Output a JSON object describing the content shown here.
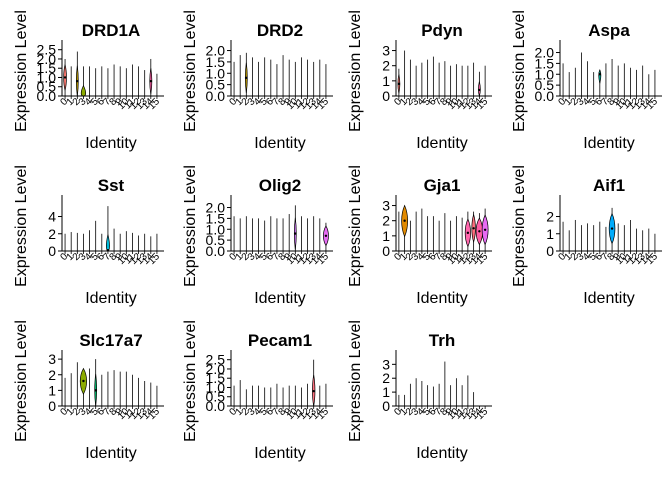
{
  "figure": {
    "type": "violin",
    "identities": [
      "0",
      "1",
      "2",
      "3",
      "4",
      "5",
      "6",
      "7",
      "8",
      "9",
      "10",
      "11",
      "12",
      "13",
      "14",
      "15"
    ],
    "colors": [
      "#F8766D",
      "#E18A00",
      "#BE9C00",
      "#8CAB00",
      "#24B700",
      "#00BE70",
      "#00C1AB",
      "#00BBDA",
      "#00ACFC",
      "#8B93FF",
      "#D575FE",
      "#F962DD",
      "#FF65AC",
      "#FF6F7E",
      "#FF5EA6",
      "#E76BF3"
    ]
  },
  "chart_data": [
    {
      "type": "violin",
      "title": "DRD1A",
      "xlabel": "Identity",
      "ylabel": "Expression Level",
      "ylim": [
        0,
        2.7
      ],
      "yticks": [
        "0.0",
        "0.5",
        "1.0",
        "1.5",
        "2.0",
        "2.5"
      ],
      "max": [
        2.0,
        1.6,
        2.4,
        1.6,
        1.6,
        1.5,
        1.6,
        1.5,
        1.7,
        1.6,
        1.5,
        1.7,
        1.6,
        1.4,
        2.0,
        1.2
      ],
      "median": [
        1.0,
        0,
        0.8,
        0,
        0,
        0,
        0,
        0,
        0,
        0,
        0,
        0,
        0,
        0,
        0.8,
        0
      ],
      "width": [
        0.22,
        0,
        0.05,
        0.35,
        0,
        0,
        0,
        0,
        0,
        0,
        0,
        0,
        0,
        0,
        0.15,
        0
      ]
    },
    {
      "type": "violin",
      "title": "DRD2",
      "xlabel": "Identity",
      "ylabel": "Expression Level",
      "ylim": [
        0,
        2.2
      ],
      "yticks": [
        "0.0",
        "0.5",
        "1.0",
        "1.5",
        "2.0"
      ],
      "max": [
        1.5,
        1.8,
        1.9,
        1.7,
        1.5,
        1.7,
        1.6,
        1.4,
        1.8,
        1.6,
        1.5,
        1.7,
        1.6,
        1.5,
        1.6,
        1.4
      ],
      "median": [
        0,
        0,
        0.8,
        0,
        0,
        0,
        0,
        0,
        0,
        0,
        0,
        0,
        0,
        0,
        0,
        0
      ],
      "width": [
        0,
        0,
        0.1,
        0,
        0,
        0,
        0,
        0,
        0,
        0,
        0,
        0,
        0,
        0,
        0,
        0
      ]
    },
    {
      "type": "violin",
      "title": "Pdyn",
      "xlabel": "Identity",
      "ylabel": "Expression Level",
      "ylim": [
        0,
        3.3
      ],
      "yticks": [
        "0",
        "1",
        "2",
        "3"
      ],
      "max": [
        1.8,
        3.0,
        2.4,
        2.0,
        2.2,
        2.4,
        2.6,
        2.2,
        2.3,
        2.0,
        2.1,
        2.0,
        2.0,
        2.2,
        1.6,
        2.0
      ],
      "median": [
        0.8,
        0,
        0,
        0,
        0,
        0,
        0,
        0,
        0,
        0,
        0,
        0,
        0,
        0,
        0.4,
        0
      ],
      "width": [
        0.12,
        0,
        0,
        0,
        0,
        0,
        0,
        0,
        0,
        0,
        0,
        0,
        0,
        0,
        0.1,
        0
      ]
    },
    {
      "type": "violin",
      "title": "Aspa",
      "xlabel": "Identity",
      "ylabel": "Expression Level",
      "ylim": [
        0,
        2.3
      ],
      "yticks": [
        "0.0",
        "0.5",
        "1.0",
        "1.5",
        "2.0"
      ],
      "max": [
        1.5,
        1.1,
        1.3,
        2.0,
        1.6,
        1.1,
        1.2,
        1.5,
        1.7,
        1.4,
        1.5,
        1.3,
        1.2,
        1.4,
        1.0,
        1.2
      ],
      "median": [
        0,
        0,
        0,
        0,
        0,
        0,
        1.0,
        0,
        0,
        0,
        0,
        0,
        0,
        0,
        0,
        0
      ],
      "width": [
        0,
        0,
        0,
        0,
        0,
        0,
        0.15,
        0,
        0,
        0,
        0,
        0,
        0,
        0,
        0,
        0
      ]
    },
    {
      "type": "violin",
      "title": "Sst",
      "xlabel": "Identity",
      "ylabel": "Expression Level",
      "ylim": [
        0,
        5.8
      ],
      "yticks": [
        "0",
        "2",
        "4"
      ],
      "max": [
        2.0,
        2.2,
        2.1,
        2.0,
        2.4,
        3.5,
        2.0,
        5.2,
        2.6,
        2.0,
        2.3,
        2.1,
        1.8,
        2.0,
        1.7,
        2.0
      ],
      "median": [
        0,
        0,
        0,
        0,
        0,
        0,
        0,
        0.1,
        0,
        0,
        0,
        0,
        0,
        0,
        0,
        0
      ],
      "width": [
        0,
        0,
        0,
        0,
        0,
        0,
        0,
        0.25,
        0,
        0,
        0,
        0,
        0,
        0,
        0,
        0
      ]
    },
    {
      "type": "violin",
      "title": "Olig2",
      "xlabel": "Identity",
      "ylabel": "Expression Level",
      "ylim": [
        0,
        2.3
      ],
      "yticks": [
        "0.0",
        "0.5",
        "1.0",
        "1.5",
        "2.0"
      ],
      "max": [
        1.6,
        1.5,
        1.6,
        1.5,
        1.5,
        1.4,
        1.6,
        1.5,
        1.5,
        1.7,
        2.1,
        1.6,
        1.5,
        1.6,
        1.5,
        1.3
      ],
      "median": [
        0,
        0,
        0,
        0,
        0,
        0,
        0,
        0,
        0,
        0,
        0.8,
        0,
        0,
        0,
        0,
        0.7
      ],
      "width": [
        0,
        0,
        0,
        0,
        0,
        0,
        0,
        0,
        0,
        0,
        0.12,
        0,
        0,
        0,
        0,
        0.4
      ]
    },
    {
      "type": "violin",
      "title": "Gja1",
      "xlabel": "Identity",
      "ylabel": "Expression Level",
      "ylim": [
        0,
        3.3
      ],
      "yticks": [
        "0",
        "1",
        "2",
        "3"
      ],
      "max": [
        2.6,
        3.0,
        2.0,
        2.6,
        2.8,
        2.3,
        2.3,
        2.0,
        2.5,
        2.0,
        2.3,
        2.2,
        2.6,
        2.6,
        2.5,
        2.8
      ],
      "median": [
        0,
        2.0,
        0,
        0,
        0,
        0,
        0,
        0,
        0,
        0,
        0,
        0,
        1.2,
        1.5,
        1.3,
        1.4
      ],
      "width": [
        0,
        0.5,
        0,
        0,
        0,
        0,
        0,
        0,
        0,
        0,
        0,
        0,
        0.45,
        0.3,
        0.55,
        0.5
      ]
    },
    {
      "type": "violin",
      "title": "Aif1",
      "xlabel": "Identity",
      "ylabel": "Expression Level",
      "ylim": [
        0,
        2.9
      ],
      "yticks": [
        "0",
        "1",
        "2"
      ],
      "max": [
        1.7,
        1.2,
        1.8,
        1.5,
        1.6,
        1.5,
        1.7,
        1.4,
        2.5,
        1.6,
        1.5,
        1.8,
        1.3,
        1.2,
        1.3,
        1.0
      ],
      "median": [
        0,
        0,
        0,
        0,
        0,
        0,
        0,
        0,
        1.3,
        0,
        0,
        0,
        0,
        0,
        0,
        0
      ],
      "width": [
        0,
        0,
        0,
        0,
        0,
        0,
        0,
        0,
        0.45,
        0,
        0,
        0,
        0,
        0,
        0,
        0
      ]
    },
    {
      "type": "violin",
      "title": "Slc17a7",
      "xlabel": "Identity",
      "ylabel": "Expression Level",
      "ylim": [
        0,
        3.2
      ],
      "yticks": [
        "0",
        "1",
        "2",
        "3"
      ],
      "max": [
        1.8,
        2.1,
        2.8,
        2.4,
        2.4,
        3.0,
        2.0,
        2.2,
        2.3,
        2.2,
        2.2,
        2.0,
        1.8,
        1.6,
        1.5,
        1.3
      ],
      "median": [
        0,
        0,
        0,
        1.6,
        0,
        1.0,
        0,
        0,
        0,
        0,
        0,
        0,
        0,
        0,
        0,
        0
      ],
      "width": [
        0,
        0,
        0,
        0.5,
        0,
        0.12,
        0,
        0,
        0,
        0,
        0,
        0,
        0,
        0,
        0,
        0
      ]
    },
    {
      "type": "violin",
      "title": "Pecam1",
      "xlabel": "Identity",
      "ylabel": "Expression Level",
      "ylim": [
        0,
        2.7
      ],
      "yticks": [
        "0.0",
        "0.5",
        "1.0",
        "1.5",
        "2.0",
        "2.5"
      ],
      "max": [
        1.1,
        1.4,
        0.9,
        1.1,
        1.1,
        1.0,
        1.0,
        1.2,
        1.0,
        1.1,
        1.1,
        1.0,
        1.2,
        2.5,
        1.1,
        1.2
      ],
      "median": [
        0,
        0,
        0,
        0,
        0,
        0,
        0,
        0,
        0,
        0,
        0,
        0,
        0,
        0.8,
        0,
        0
      ],
      "width": [
        0,
        0,
        0,
        0,
        0,
        0,
        0,
        0,
        0,
        0,
        0,
        0,
        0,
        0.2,
        0,
        0
      ]
    },
    {
      "type": "violin",
      "title": "Trh",
      "xlabel": "Identity",
      "ylabel": "Expression Level",
      "ylim": [
        0,
        3.6
      ],
      "yticks": [
        "0",
        "1",
        "2",
        "3"
      ],
      "max": [
        0.8,
        0.8,
        1.6,
        2.0,
        1.8,
        1.5,
        1.4,
        1.6,
        3.2,
        1.5,
        2.0,
        1.5,
        2.2,
        1.0,
        0,
        0
      ],
      "median": [
        0,
        0,
        0,
        0,
        0,
        0,
        0,
        0,
        0,
        0,
        0,
        0,
        0,
        0,
        0,
        0
      ],
      "width": [
        0,
        0,
        0,
        0,
        0,
        0,
        0,
        0,
        0,
        0,
        0,
        0,
        0,
        0,
        0,
        0
      ]
    }
  ]
}
